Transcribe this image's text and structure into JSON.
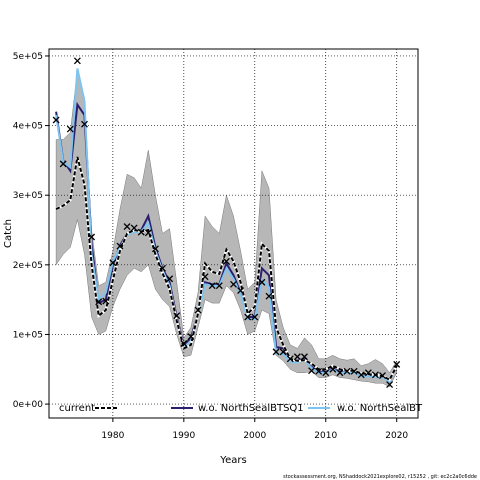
{
  "chart_data": {
    "type": "line",
    "xlabel": "Years",
    "ylabel": "Catch",
    "xlim": [
      1971,
      2023
    ],
    "ylim": [
      -20000,
      510000
    ],
    "x_ticks": [
      1980,
      1990,
      2000,
      2010,
      2020
    ],
    "y_ticks": [
      0,
      100000,
      200000,
      300000,
      400000,
      500000
    ],
    "y_tick_labels": [
      "0e+00",
      "1e+05",
      "2e+05",
      "3e+05",
      "4e+05",
      "5e+05"
    ],
    "grid": true,
    "legend_position": "bottom",
    "colors": {
      "current": "#000000",
      "northsealbtsq1": "#2c1e6e",
      "northsealbt": "#7ec4ef",
      "band": "#999999",
      "observed": "#000000"
    },
    "legend": [
      {
        "key": "current",
        "label": "current"
      },
      {
        "key": "northsealbtsq1",
        "label": "w.o. NorthSealBTSQ1"
      },
      {
        "key": "northsealbt",
        "label": "w.o. NorthSealBT"
      }
    ],
    "footer": "stockassessment.org, NShaddock2021explore02, r15252 , git: ec2c2a0c6dde",
    "years": [
      1972,
      1973,
      1974,
      1975,
      1976,
      1977,
      1978,
      1979,
      1980,
      1981,
      1982,
      1983,
      1984,
      1985,
      1986,
      1987,
      1988,
      1989,
      1990,
      1991,
      1992,
      1993,
      1994,
      1995,
      1996,
      1997,
      1998,
      1999,
      2000,
      2001,
      2002,
      2003,
      2004,
      2005,
      2006,
      2007,
      2008,
      2009,
      2010,
      2011,
      2012,
      2013,
      2014,
      2015,
      2016,
      2017,
      2018,
      2019,
      2020
    ],
    "observed": [
      408000,
      345000,
      395000,
      493000,
      402000,
      240000,
      147000,
      148000,
      203000,
      227000,
      255000,
      253000,
      247000,
      246000,
      223000,
      195000,
      180000,
      127000,
      87000,
      97000,
      135000,
      183000,
      170000,
      170000,
      205000,
      172000,
      163000,
      125000,
      125000,
      175000,
      155000,
      75000,
      75000,
      65000,
      68000,
      68000,
      48000,
      47000,
      45000,
      50000,
      45000,
      47000,
      47000,
      42000,
      45000,
      42000,
      41000,
      28000,
      57000
    ],
    "series": [
      {
        "key": "current",
        "name": "current",
        "values": [
          280000,
          285000,
          293000,
          355000,
          315000,
          200000,
          127000,
          135000,
          178000,
          220000,
          245000,
          250000,
          248000,
          250000,
          215000,
          188000,
          165000,
          120000,
          80000,
          85000,
          130000,
          202000,
          190000,
          187000,
          222000,
          205000,
          175000,
          130000,
          140000,
          230000,
          220000,
          110000,
          85000,
          65000,
          62000,
          63000,
          58000,
          50000,
          50000,
          55000,
          50000,
          48000,
          48000,
          44000,
          43000,
          42000,
          40000,
          35000,
          55000
        ]
      },
      {
        "key": "northsealbtsq1",
        "name": "w.o. NorthSealBTSQ1",
        "values": [
          420000,
          350000,
          335000,
          430000,
          415000,
          230000,
          145000,
          150000,
          200000,
          228000,
          245000,
          248000,
          250000,
          270000,
          225000,
          195000,
          175000,
          125000,
          85000,
          95000,
          130000,
          175000,
          172000,
          172000,
          202000,
          185000,
          160000,
          125000,
          125000,
          195000,
          185000,
          82000,
          80000,
          65000,
          63000,
          65000,
          55000,
          47000,
          47000,
          52000,
          47000,
          47000,
          47000,
          42000,
          42000,
          41000,
          40000,
          32000,
          55000
        ]
      },
      {
        "key": "northsealbt",
        "name": "w.o. NorthSealBT",
        "values": [
          415000,
          348000,
          340000,
          482000,
          435000,
          215000,
          150000,
          160000,
          205000,
          225000,
          243000,
          247000,
          248000,
          260000,
          220000,
          192000,
          170000,
          120000,
          82000,
          90000,
          128000,
          172000,
          170000,
          170000,
          195000,
          180000,
          158000,
          122000,
          122000,
          178000,
          168000,
          72000,
          72000,
          60000,
          60000,
          63000,
          52000,
          45000,
          45000,
          50000,
          45000,
          45000,
          45000,
          40000,
          40000,
          39000,
          38000,
          32000,
          55000
        ]
      }
    ],
    "confidence_band": {
      "upper": [
        380000,
        380000,
        390000,
        480000,
        440000,
        250000,
        170000,
        175000,
        220000,
        280000,
        330000,
        325000,
        310000,
        365000,
        300000,
        245000,
        252000,
        175000,
        95000,
        110000,
        160000,
        270000,
        255000,
        245000,
        300000,
        270000,
        220000,
        165000,
        175000,
        335000,
        310000,
        150000,
        110000,
        85000,
        80000,
        95000,
        85000,
        65000,
        65000,
        70000,
        65000,
        63000,
        65000,
        55000,
        58000,
        64000,
        58000,
        45000,
        62000
      ],
      "lower": [
        200000,
        215000,
        225000,
        265000,
        215000,
        125000,
        100000,
        105000,
        140000,
        165000,
        185000,
        195000,
        190000,
        200000,
        165000,
        150000,
        140000,
        100000,
        68000,
        70000,
        110000,
        150000,
        145000,
        145000,
        170000,
        160000,
        135000,
        100000,
        105000,
        135000,
        130000,
        70000,
        62000,
        50000,
        45000,
        45000,
        47000,
        38000,
        38000,
        42000,
        38000,
        37000,
        35000,
        33000,
        32000,
        30000,
        30000,
        25000,
        45000
      ]
    }
  }
}
